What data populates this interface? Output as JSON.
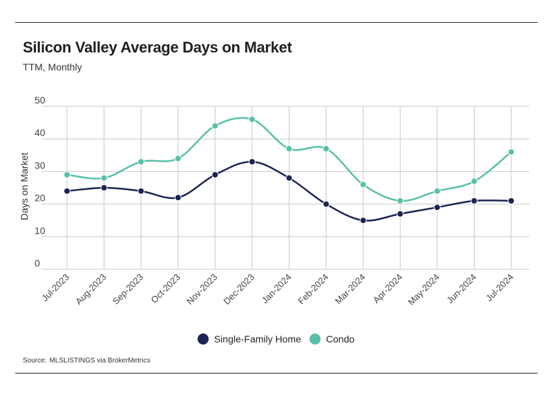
{
  "header": {
    "title": "Silicon Valley Average Days on Market",
    "subtitle": "TTM, Monthly"
  },
  "footer": {
    "source_label": "Source:",
    "source_text": "MLSLISTINGS via BrokerMetrics"
  },
  "colors": {
    "single_family": "#1b2452",
    "condo": "#58c0a8",
    "grid": "#c8c8c8",
    "axis_text": "#444444"
  },
  "chart_data": {
    "type": "line",
    "title": "Silicon Valley Average Days on Market",
    "subtitle": "TTM, Monthly",
    "xlabel": "",
    "ylabel": "Days on Market",
    "ylim": [
      0,
      50
    ],
    "yticks": [
      0,
      10,
      20,
      30,
      40,
      50
    ],
    "grid": true,
    "smooth": true,
    "legend_position": "bottom-center",
    "categories": [
      "Jul-2023",
      "Aug-2023",
      "Sep-2023",
      "Oct-2023",
      "Nov-2023",
      "Dec-2023",
      "Jan-2024",
      "Feb-2024",
      "Mar-2024",
      "Apr-2024",
      "May-2024",
      "Jun-2024",
      "Jul-2024"
    ],
    "series": [
      {
        "name": "Single-Family Home",
        "color": "#1b2452",
        "values": [
          24,
          25,
          24,
          22,
          29,
          33,
          28,
          20,
          15,
          17,
          19,
          21,
          21
        ]
      },
      {
        "name": "Condo",
        "color": "#58c0a8",
        "values": [
          29,
          28,
          33,
          34,
          44,
          46,
          37,
          37,
          26,
          21,
          24,
          27,
          36
        ]
      }
    ]
  }
}
